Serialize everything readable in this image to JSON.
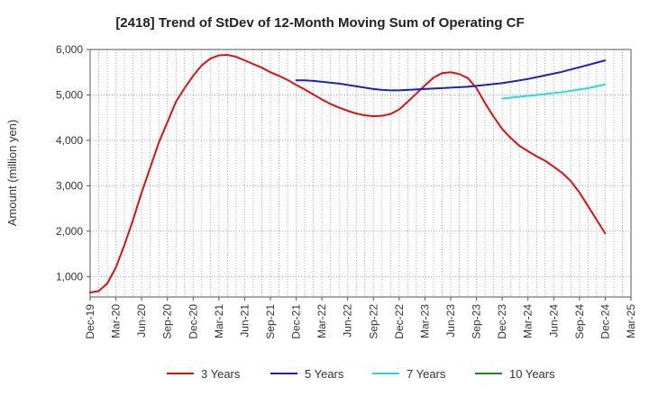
{
  "chart_data": {
    "type": "line",
    "title": "[2418]  Trend of StDev of 12-Month Moving Sum of Operating CF",
    "xlabel": "",
    "ylabel": "Amount (million yen)",
    "ylim": [
      550,
      6000
    ],
    "yticks": [
      1000,
      2000,
      3000,
      4000,
      5000,
      6000
    ],
    "ytick_labels": [
      "1,000",
      "2,000",
      "3,000",
      "4,000",
      "5,000",
      "6,000"
    ],
    "xlim": [
      "Dec-19",
      "Mar-25"
    ],
    "xtick_labels": [
      "Dec-19",
      "Mar-20",
      "Jun-20",
      "Sep-20",
      "Dec-20",
      "Mar-21",
      "Jun-21",
      "Sep-21",
      "Dec-21",
      "Mar-22",
      "Jun-22",
      "Sep-22",
      "Dec-22",
      "Mar-23",
      "Jun-23",
      "Sep-23",
      "Dec-23",
      "Mar-24",
      "Jun-24",
      "Sep-24",
      "Dec-24",
      "Mar-25"
    ],
    "grid": true,
    "legend_position": "bottom",
    "series": [
      {
        "name": "3 Years",
        "color": "#dd1111",
        "x": [
          "Dec-19",
          "Jan-20",
          "Feb-20",
          "Mar-20",
          "Apr-20",
          "May-20",
          "Jun-20",
          "Jul-20",
          "Aug-20",
          "Sep-20",
          "Oct-20",
          "Nov-20",
          "Dec-20",
          "Jan-21",
          "Feb-21",
          "Mar-21",
          "Apr-21",
          "May-21",
          "Jun-21",
          "Jul-21",
          "Aug-21",
          "Sep-21",
          "Oct-21",
          "Nov-21",
          "Dec-21",
          "Jan-22",
          "Feb-22",
          "Mar-22",
          "Apr-22",
          "May-22",
          "Jun-22",
          "Jul-22",
          "Aug-22",
          "Sep-22",
          "Oct-22",
          "Nov-22",
          "Dec-22",
          "Jan-23",
          "Feb-23",
          "Mar-23",
          "Apr-23",
          "May-23",
          "Jun-23",
          "Jul-23",
          "Aug-23",
          "Sep-23",
          "Oct-23",
          "Nov-23",
          "Dec-23",
          "Jan-24",
          "Feb-24",
          "Mar-24",
          "Apr-24",
          "May-24",
          "Jun-24",
          "Jul-24",
          "Aug-24",
          "Sep-24",
          "Oct-24",
          "Nov-24",
          "Dec-24"
        ],
        "values": [
          650,
          680,
          850,
          1200,
          1700,
          2250,
          2850,
          3400,
          3950,
          4400,
          4850,
          5150,
          5420,
          5650,
          5800,
          5870,
          5880,
          5840,
          5760,
          5680,
          5600,
          5500,
          5420,
          5330,
          5220,
          5120,
          5010,
          4900,
          4800,
          4720,
          4650,
          4590,
          4550,
          4530,
          4540,
          4580,
          4680,
          4850,
          5030,
          5210,
          5380,
          5480,
          5500,
          5460,
          5370,
          5150,
          4820,
          4520,
          4250,
          4050,
          3880,
          3760,
          3650,
          3550,
          3420,
          3280,
          3100,
          2850,
          2550,
          2250,
          1950
        ]
      },
      {
        "name": "5 Years",
        "color": "#1a22bb",
        "x": [
          "Dec-21",
          "Jan-22",
          "Feb-22",
          "Mar-22",
          "Apr-22",
          "May-22",
          "Jun-22",
          "Jul-22",
          "Aug-22",
          "Sep-22",
          "Oct-22",
          "Nov-22",
          "Dec-22",
          "Jan-23",
          "Feb-23",
          "Mar-23",
          "Apr-23",
          "May-23",
          "Jun-23",
          "Jul-23",
          "Aug-23",
          "Sep-23",
          "Oct-23",
          "Nov-23",
          "Dec-23",
          "Jan-24",
          "Feb-24",
          "Mar-24",
          "Apr-24",
          "May-24",
          "Jun-24",
          "Jul-24",
          "Aug-24",
          "Sep-24",
          "Oct-24",
          "Nov-24",
          "Dec-24"
        ],
        "values": [
          5320,
          5320,
          5310,
          5290,
          5270,
          5250,
          5220,
          5190,
          5160,
          5130,
          5110,
          5100,
          5100,
          5110,
          5120,
          5130,
          5140,
          5150,
          5160,
          5170,
          5180,
          5200,
          5220,
          5240,
          5260,
          5290,
          5320,
          5350,
          5390,
          5430,
          5470,
          5510,
          5560,
          5610,
          5660,
          5710,
          5760
        ]
      },
      {
        "name": "7 Years",
        "color": "#22dddd",
        "x": [
          "Dec-23",
          "Jan-24",
          "Feb-24",
          "Mar-24",
          "Apr-24",
          "May-24",
          "Jun-24",
          "Jul-24",
          "Aug-24",
          "Sep-24",
          "Oct-24",
          "Nov-24",
          "Dec-24"
        ],
        "values": [
          4920,
          4940,
          4960,
          4980,
          5000,
          5020,
          5040,
          5060,
          5090,
          5120,
          5150,
          5190,
          5230
        ]
      },
      {
        "name": "10 Years",
        "color": "#228822",
        "x": [],
        "values": []
      }
    ]
  }
}
